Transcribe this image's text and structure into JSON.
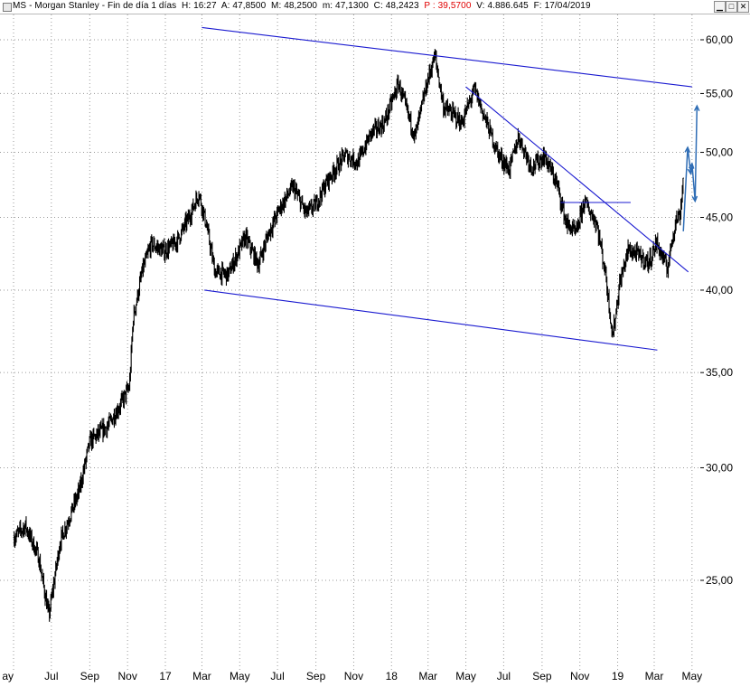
{
  "window": {
    "symbol": "MS",
    "name": "Morgan Stanley",
    "period": "Fin de día 1 días",
    "readout": {
      "h_label": "H:",
      "h": "16:27",
      "a_label": "A:",
      "a": "47,8500",
      "m_label": "M:",
      "m": "48,2500",
      "mn_label": "m:",
      "mn": "47,1300",
      "c_label": "C:",
      "c": "48,2423",
      "p_label": "P :",
      "p": "39,5700",
      "v_label": "V:",
      "v": "4.886.645",
      "f_label": "F:",
      "f": "17/04/2019"
    },
    "buttons": {
      "minimize": "▁",
      "restore": "□",
      "close": "✕"
    },
    "icons": {
      "system": "chart-window-icon"
    },
    "colors": {
      "price": "#000000",
      "trend": "#1a1ad0",
      "forecast": "#2f6db5",
      "highlight": "#e00000",
      "grid": "#9a9a9a"
    }
  },
  "chart_data": {
    "type": "line",
    "style": "bar (OHLC), daily",
    "grid": true,
    "y_scale": "log",
    "y_ticks": [
      "60,00",
      "55,00",
      "50,00",
      "45,00",
      "40,00",
      "35,00",
      "30,00",
      "25,00"
    ],
    "y_tick_values": [
      60,
      55,
      50,
      45,
      40,
      35,
      30,
      25
    ],
    "x_ticks": [
      "ay",
      "Jul",
      "Sep",
      "Nov",
      "17",
      "Mar",
      "May",
      "Jul",
      "Sep",
      "Nov",
      "18",
      "Mar",
      "May",
      "Jul",
      "Sep",
      "Nov",
      "19",
      "Mar",
      "May"
    ],
    "x_tick_dates": [
      "2016-05",
      "2016-07",
      "2016-09",
      "2016-11",
      "2017-01",
      "2017-03",
      "2017-05",
      "2017-07",
      "2017-09",
      "2017-11",
      "2018-01",
      "2018-03",
      "2018-05",
      "2018-07",
      "2018-09",
      "2018-11",
      "2019-01",
      "2019-03",
      "2019-05"
    ],
    "series": [
      {
        "values": [
          [
            "2016-05-02",
            26.8
          ],
          [
            "2016-05-20",
            27.3
          ],
          [
            "2016-06-10",
            26.0
          ],
          [
            "2016-06-27",
            23.6
          ],
          [
            "2016-07-15",
            26.6
          ],
          [
            "2016-08-15",
            28.9
          ],
          [
            "2016-09-01",
            31.3
          ],
          [
            "2016-09-30",
            32.1
          ],
          [
            "2016-10-20",
            33.2
          ],
          [
            "2016-11-04",
            34.2
          ],
          [
            "2016-11-10",
            38.2
          ],
          [
            "2016-11-25",
            41.3
          ],
          [
            "2016-12-09",
            43.1
          ],
          [
            "2016-12-30",
            42.6
          ],
          [
            "2017-01-20",
            43.3
          ],
          [
            "2017-02-10",
            45.2
          ],
          [
            "2017-02-24",
            46.8
          ],
          [
            "2017-03-08",
            44.5
          ],
          [
            "2017-03-22",
            41.2
          ],
          [
            "2017-04-12",
            41.0
          ],
          [
            "2017-05-10",
            43.6
          ],
          [
            "2017-05-31",
            41.7
          ],
          [
            "2017-06-16",
            43.8
          ],
          [
            "2017-07-05",
            45.7
          ],
          [
            "2017-07-26",
            47.3
          ],
          [
            "2017-08-16",
            45.3
          ],
          [
            "2017-08-31",
            45.9
          ],
          [
            "2017-09-20",
            47.8
          ],
          [
            "2017-10-18",
            49.8
          ],
          [
            "2017-11-08",
            49.2
          ],
          [
            "2017-11-29",
            51.6
          ],
          [
            "2017-12-20",
            52.4
          ],
          [
            "2018-01-12",
            55.9
          ],
          [
            "2018-02-08",
            51.3
          ],
          [
            "2018-02-28",
            56.1
          ],
          [
            "2018-03-12",
            58.5
          ],
          [
            "2018-03-26",
            53.8
          ],
          [
            "2018-04-12",
            53.1
          ],
          [
            "2018-04-24",
            52.4
          ],
          [
            "2018-05-15",
            55.4
          ],
          [
            "2018-06-01",
            52.8
          ],
          [
            "2018-06-22",
            49.9
          ],
          [
            "2018-07-10",
            48.6
          ],
          [
            "2018-07-25",
            51.3
          ],
          [
            "2018-08-15",
            48.8
          ],
          [
            "2018-09-05",
            49.7
          ],
          [
            "2018-09-25",
            47.5
          ],
          [
            "2018-10-10",
            44.6
          ],
          [
            "2018-10-26",
            43.8
          ],
          [
            "2018-11-08",
            46.2
          ],
          [
            "2018-11-28",
            44.6
          ],
          [
            "2018-12-12",
            41.2
          ],
          [
            "2018-12-24",
            37.1
          ],
          [
            "2019-01-04",
            40.4
          ],
          [
            "2019-01-18",
            42.7
          ],
          [
            "2019-02-01",
            42.4
          ],
          [
            "2019-02-20",
            41.8
          ],
          [
            "2019-03-05",
            43.2
          ],
          [
            "2019-03-22",
            41.4
          ],
          [
            "2019-04-04",
            44.7
          ],
          [
            "2019-04-12",
            45.3
          ],
          [
            "2019-04-17",
            48.2
          ]
        ]
      }
    ],
    "annotations": {
      "upper_channel": [
        [
          "2017-03-01",
          61.2
        ],
        [
          "2019-05-01",
          55.6
        ]
      ],
      "lower_channel": [
        [
          "2017-03-05",
          40.0
        ],
        [
          "2019-03-06",
          36.3
        ]
      ],
      "falling_trendline": [
        [
          "2018-05-01",
          55.6
        ],
        [
          "2019-04-25",
          41.2
        ]
      ],
      "resistance": [
        [
          "2018-10-01",
          46.1
        ],
        [
          "2019-01-22",
          46.1
        ]
      ],
      "forecast": [
        [
          "2019-04-17",
          44.0
        ],
        [
          "2019-04-24",
          50.4
        ],
        [
          "2019-04-29",
          48.3
        ],
        [
          "2019-05-01",
          49.1
        ],
        [
          "2019-05-06",
          46.2
        ],
        [
          "2019-05-09",
          53.9
        ]
      ]
    }
  }
}
